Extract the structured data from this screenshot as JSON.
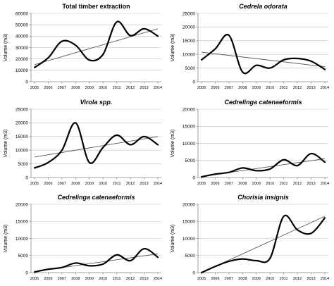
{
  "chart_data": [
    {
      "type": "line",
      "title": "Total timber extraction",
      "title_italic": false,
      "ylabel": "Volume (m3)",
      "xlabel": "",
      "x": [
        "2005",
        "2006",
        "2007",
        "2008",
        "2009",
        "2010",
        "2011",
        "2012",
        "2013",
        "2014"
      ],
      "series": [
        {
          "values": [
            12500,
            21000,
            35500,
            32000,
            19000,
            24000,
            52500,
            40500,
            46500,
            40000
          ]
        }
      ],
      "trendline": [
        15000,
        46500
      ],
      "ylim": [
        0,
        60000
      ],
      "yticks": [
        "0",
        "10000",
        "20000",
        "30000",
        "40000",
        "50000",
        "60000"
      ]
    },
    {
      "type": "line",
      "title": "Cedrela odorata",
      "title_italic": true,
      "ylabel": "Volume (m3)",
      "xlabel": "",
      "x": [
        "2005",
        "2006",
        "2007",
        "2008",
        "2009",
        "2010",
        "2011",
        "2012",
        "2013",
        "2014"
      ],
      "series": [
        {
          "values": [
            8000,
            12000,
            17000,
            3500,
            6000,
            5000,
            8000,
            8500,
            7500,
            4500
          ]
        }
      ],
      "trendline": [
        10800,
        5500
      ],
      "ylim": [
        0,
        25000
      ],
      "yticks": [
        "0",
        "5000",
        "10000",
        "15000",
        "20000",
        "25000"
      ]
    },
    {
      "type": "line",
      "title": "Virola spp.",
      "title_italic": true,
      "ylabel": "Volume (m3)",
      "xlabel": "",
      "x": [
        "2005",
        "2006",
        "2007",
        "2008",
        "2009",
        "2010",
        "2011",
        "2012",
        "2013",
        "2014"
      ],
      "series": [
        {
          "values": [
            3500,
            5500,
            10000,
            20000,
            5500,
            11000,
            15500,
            12000,
            15000,
            12000
          ]
        }
      ],
      "trendline": [
        7500,
        15000
      ],
      "ylim": [
        0,
        25000
      ],
      "yticks": [
        "0",
        "5000",
        "10000",
        "15000",
        "20000",
        "25000"
      ]
    },
    {
      "type": "line",
      "title": "Cedrelinga catenaeformis",
      "title_italic": true,
      "ylabel": "Volume (m3)",
      "xlabel": "",
      "x": [
        "2005",
        "2006",
        "2007",
        "2008",
        "2009",
        "2010",
        "2011",
        "2012",
        "2013",
        "2014"
      ],
      "series": [
        {
          "values": [
            200,
            1000,
            1500,
            2800,
            2000,
            2500,
            5200,
            3500,
            7000,
            4500
          ]
        }
      ],
      "trendline": [
        300,
        5500
      ],
      "ylim": [
        0,
        20000
      ],
      "yticks": [
        "0",
        "5000",
        "10000",
        "15000",
        "20000"
      ]
    },
    {
      "type": "line",
      "title": "Cedrelinga catenaeformis",
      "title_italic": true,
      "ylabel": "Volume (m3)",
      "xlabel": "",
      "x": [
        "2005",
        "2006",
        "2007",
        "2008",
        "2009",
        "2010",
        "2011",
        "2012",
        "2013",
        "2014"
      ],
      "series": [
        {
          "values": [
            200,
            1000,
            1500,
            2800,
            2000,
            2500,
            5200,
            3500,
            7000,
            4500
          ]
        }
      ],
      "trendline": [
        300,
        5500
      ],
      "ylim": [
        0,
        20000
      ],
      "yticks": [
        "0",
        "5000",
        "10000",
        "15000",
        "20000"
      ]
    },
    {
      "type": "line",
      "title": "Chorisia insignis",
      "title_italic": true,
      "ylabel": "Volume (m3)",
      "xlabel": "",
      "x": [
        "2005",
        "2006",
        "2007",
        "2008",
        "2009",
        "2010",
        "2011",
        "2012",
        "2013",
        "2014"
      ],
      "series": [
        {
          "values": [
            0,
            1800,
            3300,
            4000,
            3500,
            4200,
            16500,
            12500,
            11500,
            16000
          ]
        }
      ],
      "trendline": [
        0,
        16500
      ],
      "ylim": [
        0,
        20000
      ],
      "yticks": [
        "0",
        "5000",
        "10000",
        "15000",
        "20000"
      ]
    }
  ],
  "colors": {
    "series_line": "#000000",
    "trendline": "#555555",
    "axis": "#888888",
    "gridline": "#bfbfbf"
  }
}
